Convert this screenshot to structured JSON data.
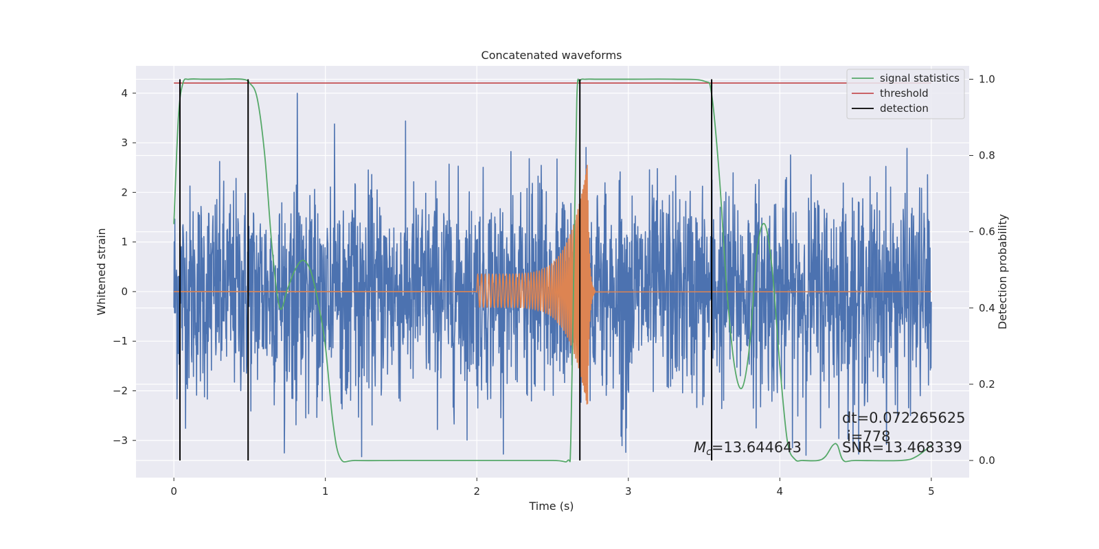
{
  "chart_data": {
    "type": "line",
    "title": "Concatenated waveforms",
    "xlabel": "Time (s)",
    "ylabel": "Whitened strain",
    "y2label": "Detection probability",
    "xlim": [
      -0.25,
      5.25
    ],
    "ylim": [
      -3.75,
      4.55
    ],
    "y2lim": [
      -0.045,
      1.035
    ],
    "xticks": [
      0,
      1,
      2,
      3,
      4,
      5
    ],
    "xtick_labels": [
      "0",
      "1",
      "2",
      "3",
      "4",
      "5"
    ],
    "yticks": [
      4,
      3,
      2,
      1,
      0,
      -1,
      -2,
      -3
    ],
    "ytick_labels": [
      "4",
      "3",
      "2",
      "1",
      "0",
      "−1",
      "−2",
      "−3"
    ],
    "y2ticks": [
      1.0,
      0.8,
      0.6,
      0.4,
      0.2,
      0.0
    ],
    "y2tick_labels": [
      "1.0",
      "0.8",
      "0.6",
      "0.4",
      "0.2",
      "0.0"
    ],
    "grid": true,
    "legend_position": "top-right",
    "colors": {
      "strain": "#4c72b0",
      "template": "#dd8452",
      "signal_statistics": "#55a868",
      "threshold": "#c44e52",
      "detection": "#000000",
      "background": "#eaeaf2"
    },
    "series": [
      {
        "name": "signal statistics",
        "axis": "right",
        "x": [
          0.0,
          0.03,
          0.06,
          0.1,
          0.2,
          0.3,
          0.45,
          0.5,
          0.55,
          0.6,
          0.65,
          0.7,
          0.75,
          0.8,
          0.85,
          0.9,
          0.95,
          1.0,
          1.05,
          1.1,
          1.2,
          1.5,
          2.0,
          2.5,
          2.6,
          2.62,
          2.64,
          2.66,
          2.68,
          2.72,
          2.8,
          3.0,
          3.3,
          3.5,
          3.55,
          3.6,
          3.65,
          3.7,
          3.75,
          3.8,
          3.85,
          3.9,
          3.95,
          4.0,
          4.05,
          4.1,
          4.15,
          4.25,
          4.3,
          4.35,
          4.38,
          4.42,
          4.5,
          4.8,
          4.9,
          5.0
        ],
        "y": [
          0.62,
          0.9,
          0.99,
          1.0,
          1.0,
          1.0,
          1.0,
          0.99,
          0.95,
          0.8,
          0.55,
          0.4,
          0.45,
          0.5,
          0.525,
          0.5,
          0.42,
          0.3,
          0.1,
          0.005,
          0.0,
          0.0,
          0.0,
          0.0,
          0.0,
          0.05,
          0.5,
          0.95,
          0.995,
          1.0,
          1.0,
          1.0,
          1.0,
          0.995,
          0.96,
          0.75,
          0.45,
          0.25,
          0.19,
          0.3,
          0.55,
          0.62,
          0.5,
          0.25,
          0.05,
          0.003,
          0.0,
          0.0,
          0.01,
          0.04,
          0.04,
          0.0,
          0.0,
          0.0,
          0.01,
          0.04
        ]
      },
      {
        "name": "threshold",
        "axis": "right",
        "x": [
          0.0,
          5.0
        ],
        "y": [
          0.99,
          0.99
        ]
      },
      {
        "name": "detection",
        "axis": "right",
        "x": [
          0.04,
          0.49,
          2.68,
          3.55
        ],
        "y_range": [
          0.0,
          1.0
        ]
      },
      {
        "name": "",
        "axis": "left",
        "note": "whitened strain noise, amplitude roughly -3.4 to 4.2",
        "x": [
          0.0,
          5.0
        ],
        "y_range": [
          -3.4,
          4.2
        ]
      },
      {
        "name": "",
        "axis": "left",
        "note": "injected chirp template, t = 2.0 to 2.75 s, peak amplitude about 2.6",
        "x": [
          2.0,
          2.75
        ],
        "y_range": [
          -2.2,
          2.6
        ]
      }
    ],
    "annotations": [
      "dt=0.072265625",
      "i=778",
      "SNR=13.468339",
      "=13.644643"
    ],
    "annotation_mc_symbol": "M",
    "annotation_mc_subscript": "c"
  },
  "legend": {
    "items": [
      "signal statistics",
      "threshold",
      "detection"
    ]
  }
}
